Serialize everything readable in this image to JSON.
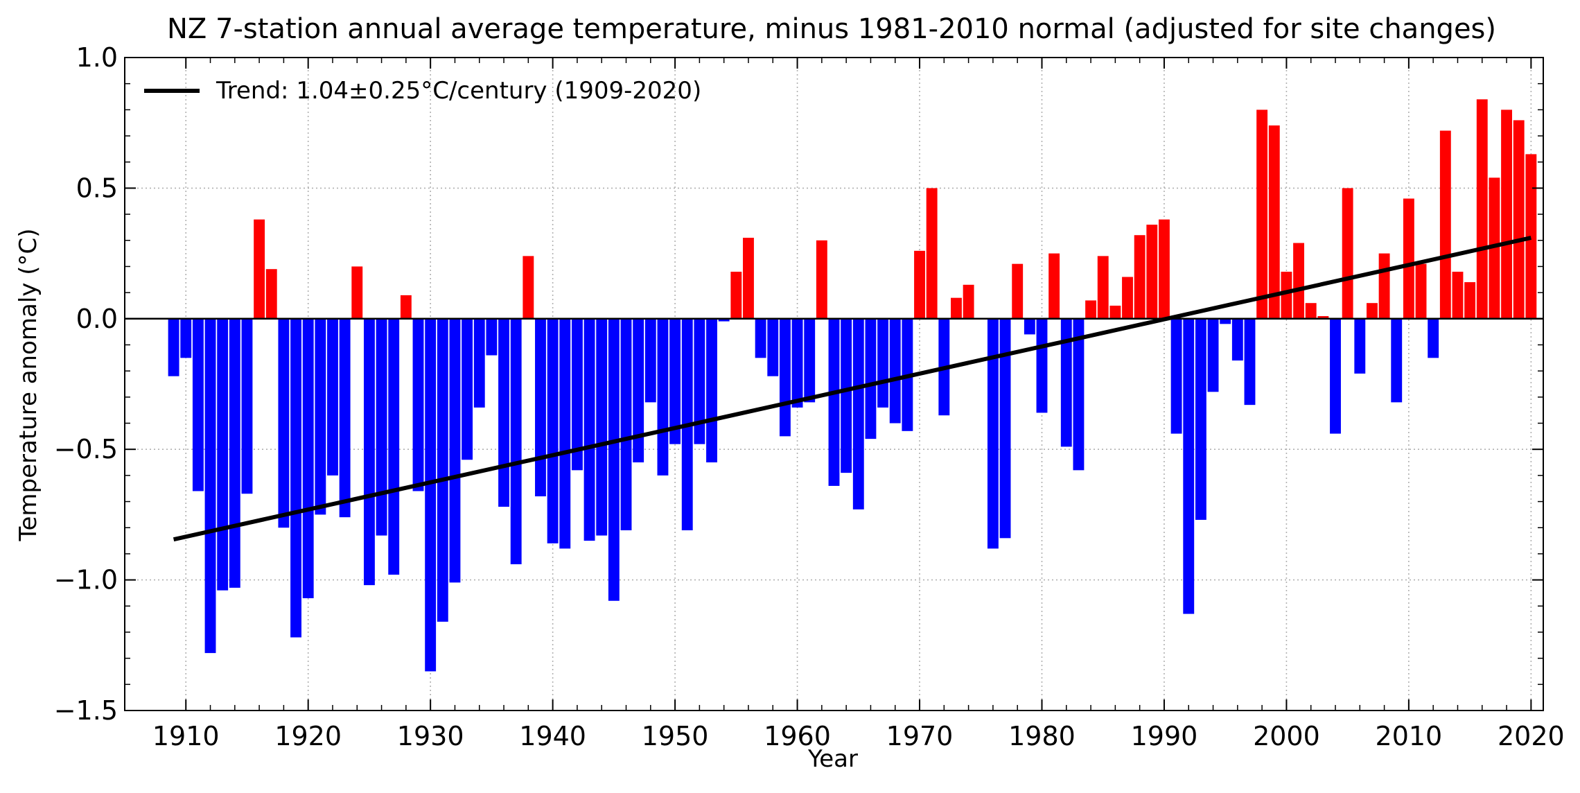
{
  "chart_data": {
    "type": "bar",
    "title": "NZ 7-station annual average temperature, minus 1981-2010 normal (adjusted for site changes)",
    "xlabel": "Year",
    "ylabel": "Temperature anomaly (°C)",
    "xlim": [
      1905,
      2021
    ],
    "ylim": [
      -1.5,
      1.0
    ],
    "x_ticks": [
      1910,
      1920,
      1930,
      1940,
      1950,
      1960,
      1970,
      1980,
      1990,
      2000,
      2010,
      2020
    ],
    "y_ticks": [
      -1.5,
      -1.0,
      -0.5,
      0.0,
      0.5,
      1.0
    ],
    "y_tick_labels": [
      "−1.5",
      "−1.0",
      "−0.5",
      "0.0",
      "0.5",
      "1.0"
    ],
    "grid": true,
    "legend_position": "top-left",
    "positive_color": "#ff0000",
    "negative_color": "#0000ff",
    "trend_color": "#000000",
    "years": [
      1909,
      1910,
      1911,
      1912,
      1913,
      1914,
      1915,
      1916,
      1917,
      1918,
      1919,
      1920,
      1921,
      1922,
      1923,
      1924,
      1925,
      1926,
      1927,
      1928,
      1929,
      1930,
      1931,
      1932,
      1933,
      1934,
      1935,
      1936,
      1937,
      1938,
      1939,
      1940,
      1941,
      1942,
      1943,
      1944,
      1945,
      1946,
      1947,
      1948,
      1949,
      1950,
      1951,
      1952,
      1953,
      1954,
      1955,
      1956,
      1957,
      1958,
      1959,
      1960,
      1961,
      1962,
      1963,
      1964,
      1965,
      1966,
      1967,
      1968,
      1969,
      1970,
      1971,
      1972,
      1973,
      1974,
      1975,
      1976,
      1977,
      1978,
      1979,
      1980,
      1981,
      1982,
      1983,
      1984,
      1985,
      1986,
      1987,
      1988,
      1989,
      1990,
      1991,
      1992,
      1993,
      1994,
      1995,
      1996,
      1997,
      1998,
      1999,
      2000,
      2001,
      2002,
      2003,
      2004,
      2005,
      2006,
      2007,
      2008,
      2009,
      2010,
      2011,
      2012,
      2013,
      2014,
      2015,
      2016,
      2017,
      2018,
      2019,
      2020
    ],
    "values": [
      -0.22,
      -0.15,
      -0.66,
      -1.28,
      -1.04,
      -1.03,
      -0.67,
      0.38,
      0.19,
      -0.8,
      -1.22,
      -1.07,
      -0.75,
      -0.6,
      -0.76,
      0.2,
      -1.02,
      -0.83,
      -0.98,
      0.09,
      -0.66,
      -1.35,
      -1.16,
      -1.01,
      -0.54,
      -0.34,
      -0.14,
      -0.72,
      -0.94,
      0.24,
      -0.68,
      -0.86,
      -0.88,
      -0.58,
      -0.85,
      -0.83,
      -1.08,
      -0.81,
      -0.55,
      -0.32,
      -0.6,
      -0.48,
      -0.81,
      -0.48,
      -0.55,
      -0.01,
      0.18,
      0.31,
      -0.15,
      -0.22,
      -0.45,
      -0.34,
      -0.32,
      0.3,
      -0.64,
      -0.59,
      -0.73,
      -0.46,
      -0.34,
      -0.4,
      -0.43,
      0.26,
      0.5,
      -0.37,
      0.08,
      0.13,
      0.0,
      -0.88,
      -0.84,
      0.21,
      -0.06,
      -0.36,
      0.25,
      -0.49,
      -0.58,
      0.07,
      0.24,
      0.05,
      0.16,
      0.32,
      0.36,
      0.38,
      -0.44,
      -1.13,
      -0.77,
      -0.28,
      -0.02,
      -0.16,
      -0.33,
      0.8,
      0.74,
      0.18,
      0.29,
      0.06,
      0.01,
      -0.44,
      0.5,
      -0.21,
      0.06,
      0.25,
      -0.32,
      0.46,
      0.21,
      -0.15,
      0.72,
      0.18,
      0.14,
      0.84,
      0.54,
      0.8,
      0.76,
      0.63
    ],
    "trend": {
      "label": "Trend: 1.04±0.25°C/century (1909-2020)",
      "x": [
        1909,
        2020
      ],
      "y": [
        -0.845,
        0.31
      ]
    }
  }
}
